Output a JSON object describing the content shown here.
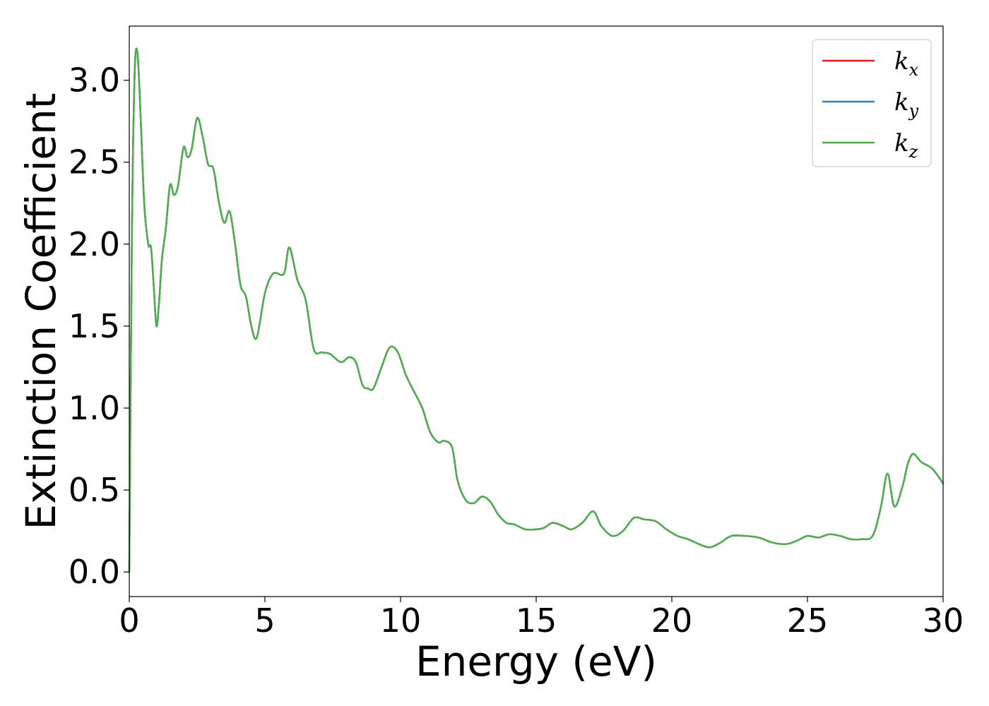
{
  "chart_data": {
    "type": "line",
    "title": "",
    "xlabel": "Energy (eV)",
    "ylabel": "Extinction Coefficient",
    "xlim": [
      0,
      30
    ],
    "ylim": [
      -0.15,
      3.33
    ],
    "xticks": [
      "0",
      "5",
      "10",
      "15",
      "20",
      "25",
      "30"
    ],
    "yticks": [
      "0.0",
      "0.5",
      "1.0",
      "1.5",
      "2.0",
      "2.5",
      "3.0"
    ],
    "grid": false,
    "legend_position": "top-right",
    "x": [
      0,
      0.1,
      0.2,
      0.3,
      0.4,
      0.55,
      0.7,
      0.8,
      0.9,
      1.0,
      1.1,
      1.2,
      1.35,
      1.5,
      1.65,
      1.8,
      2.0,
      2.15,
      2.3,
      2.5,
      2.7,
      2.9,
      3.1,
      3.3,
      3.5,
      3.7,
      3.9,
      4.1,
      4.3,
      4.5,
      4.7,
      5.0,
      5.3,
      5.7,
      5.9,
      6.2,
      6.5,
      6.8,
      7.1,
      7.4,
      7.8,
      8.1,
      8.35,
      8.6,
      8.8,
      9.0,
      9.3,
      9.6,
      9.9,
      10.2,
      10.5,
      10.8,
      11.1,
      11.4,
      11.6,
      11.9,
      12.1,
      12.4,
      12.7,
      13.0,
      13.3,
      13.6,
      13.9,
      14.2,
      14.6,
      15.0,
      15.3,
      15.6,
      16.0,
      16.3,
      16.7,
      17.1,
      17.4,
      17.8,
      18.2,
      18.6,
      19.0,
      19.4,
      19.8,
      20.2,
      20.6,
      21.0,
      21.4,
      21.8,
      22.2,
      22.7,
      23.2,
      23.7,
      24.2,
      24.6,
      25.0,
      25.4,
      25.8,
      26.2,
      26.6,
      27.0,
      27.4,
      27.7,
      27.95,
      28.2,
      28.5,
      28.7,
      28.9,
      29.2,
      29.6,
      30.0
    ],
    "series": [
      {
        "name": "kx",
        "color": "#e41a1c",
        "values": [
          0.0,
          2.1,
          3.05,
          3.17,
          2.85,
          2.25,
          2.0,
          1.98,
          1.75,
          1.5,
          1.65,
          1.9,
          2.1,
          2.36,
          2.3,
          2.36,
          2.59,
          2.53,
          2.58,
          2.77,
          2.66,
          2.49,
          2.46,
          2.26,
          2.13,
          2.2,
          2.0,
          1.75,
          1.68,
          1.5,
          1.43,
          1.7,
          1.82,
          1.82,
          1.98,
          1.78,
          1.66,
          1.36,
          1.34,
          1.33,
          1.28,
          1.31,
          1.28,
          1.14,
          1.12,
          1.12,
          1.25,
          1.37,
          1.34,
          1.2,
          1.1,
          1.0,
          0.85,
          0.79,
          0.8,
          0.76,
          0.56,
          0.44,
          0.42,
          0.46,
          0.43,
          0.35,
          0.3,
          0.29,
          0.26,
          0.26,
          0.27,
          0.3,
          0.28,
          0.26,
          0.3,
          0.37,
          0.28,
          0.22,
          0.25,
          0.33,
          0.32,
          0.31,
          0.26,
          0.22,
          0.2,
          0.17,
          0.15,
          0.18,
          0.22,
          0.22,
          0.21,
          0.18,
          0.17,
          0.19,
          0.22,
          0.21,
          0.23,
          0.22,
          0.2,
          0.2,
          0.22,
          0.39,
          0.6,
          0.4,
          0.52,
          0.66,
          0.72,
          0.67,
          0.63,
          0.54
        ]
      },
      {
        "name": "ky",
        "color": "#377eb8",
        "values": [
          0.0,
          2.1,
          3.05,
          3.17,
          2.85,
          2.25,
          2.0,
          1.98,
          1.75,
          1.5,
          1.65,
          1.9,
          2.1,
          2.36,
          2.3,
          2.36,
          2.59,
          2.53,
          2.58,
          2.77,
          2.66,
          2.49,
          2.46,
          2.26,
          2.13,
          2.2,
          2.0,
          1.75,
          1.68,
          1.5,
          1.43,
          1.7,
          1.82,
          1.82,
          1.98,
          1.78,
          1.66,
          1.36,
          1.34,
          1.33,
          1.28,
          1.31,
          1.28,
          1.14,
          1.12,
          1.12,
          1.25,
          1.37,
          1.34,
          1.2,
          1.1,
          1.0,
          0.85,
          0.79,
          0.8,
          0.76,
          0.56,
          0.44,
          0.42,
          0.46,
          0.43,
          0.35,
          0.3,
          0.29,
          0.26,
          0.26,
          0.27,
          0.3,
          0.28,
          0.26,
          0.3,
          0.37,
          0.28,
          0.22,
          0.25,
          0.33,
          0.32,
          0.31,
          0.26,
          0.22,
          0.2,
          0.17,
          0.15,
          0.18,
          0.22,
          0.22,
          0.21,
          0.18,
          0.17,
          0.19,
          0.22,
          0.21,
          0.23,
          0.22,
          0.2,
          0.2,
          0.22,
          0.39,
          0.6,
          0.4,
          0.52,
          0.66,
          0.72,
          0.67,
          0.63,
          0.54
        ]
      },
      {
        "name": "kz",
        "color": "#4daf4a",
        "values": [
          0.0,
          2.1,
          3.05,
          3.17,
          2.85,
          2.25,
          2.0,
          1.98,
          1.75,
          1.5,
          1.65,
          1.9,
          2.1,
          2.36,
          2.3,
          2.36,
          2.59,
          2.53,
          2.58,
          2.77,
          2.66,
          2.49,
          2.46,
          2.26,
          2.13,
          2.2,
          2.0,
          1.75,
          1.68,
          1.5,
          1.43,
          1.7,
          1.82,
          1.82,
          1.98,
          1.78,
          1.66,
          1.36,
          1.34,
          1.33,
          1.28,
          1.31,
          1.28,
          1.14,
          1.12,
          1.12,
          1.25,
          1.37,
          1.34,
          1.2,
          1.1,
          1.0,
          0.85,
          0.79,
          0.8,
          0.76,
          0.56,
          0.44,
          0.42,
          0.46,
          0.43,
          0.35,
          0.3,
          0.29,
          0.26,
          0.26,
          0.27,
          0.3,
          0.28,
          0.26,
          0.3,
          0.37,
          0.28,
          0.22,
          0.25,
          0.33,
          0.32,
          0.31,
          0.26,
          0.22,
          0.2,
          0.17,
          0.15,
          0.18,
          0.22,
          0.22,
          0.21,
          0.18,
          0.17,
          0.19,
          0.22,
          0.21,
          0.23,
          0.22,
          0.2,
          0.2,
          0.22,
          0.39,
          0.6,
          0.4,
          0.52,
          0.66,
          0.72,
          0.67,
          0.63,
          0.54
        ]
      }
    ],
    "legend": [
      {
        "base": "k",
        "sub": "x"
      },
      {
        "base": "k",
        "sub": "y"
      },
      {
        "base": "k",
        "sub": "z"
      }
    ]
  }
}
